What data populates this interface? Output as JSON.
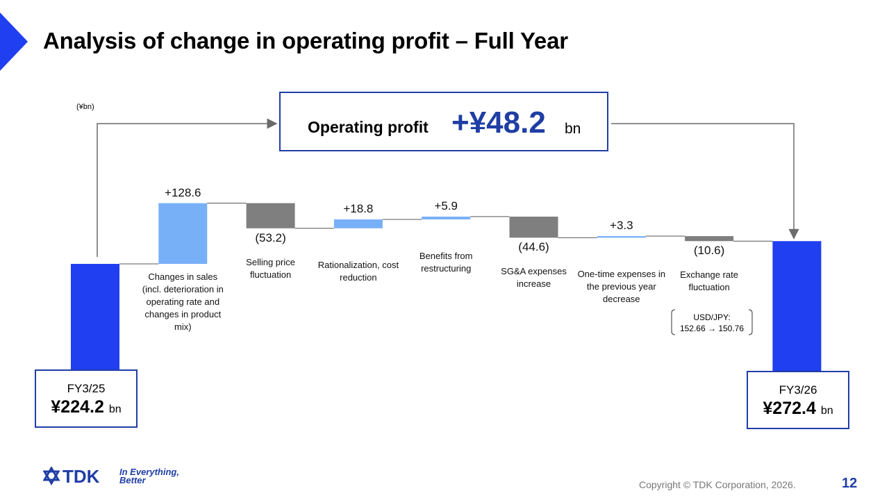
{
  "title": "Analysis of change in operating profit – Full Year",
  "unit_note": "(¥bn)",
  "summary": {
    "label": "Operating profit",
    "value": "+¥48.2",
    "unit": "bn"
  },
  "chart_data": {
    "type": "bar",
    "subtype": "waterfall",
    "start": {
      "label": "FY3/25",
      "value": 224.2,
      "value_text": "¥224.2",
      "unit": "bn"
    },
    "end": {
      "label": "FY3/26",
      "value": 272.4,
      "value_text": "¥272.4",
      "unit": "bn"
    },
    "steps": [
      {
        "category": "Changes in sales (incl. deterioration in operating rate and changes in product mix)",
        "value": 128.6,
        "label": "+128.6"
      },
      {
        "category": "Selling price fluctuation",
        "value": -53.2,
        "label": "(53.2)"
      },
      {
        "category": "Rationalization, cost reduction",
        "value": 18.8,
        "label": "+18.8"
      },
      {
        "category": "Benefits from restructuring",
        "value": 5.9,
        "label": "+5.9"
      },
      {
        "category": "SG&A expenses increase",
        "value": -44.6,
        "label": "(44.6)"
      },
      {
        "category": "One-time expenses in the previous year decrease",
        "value": 3.3,
        "label": "+3.3"
      },
      {
        "category": "Exchange rate fluctuation",
        "value": -10.6,
        "label": "(10.6)"
      }
    ],
    "exchange_note": [
      "USD/JPY:",
      "152.66 → 150.76"
    ],
    "colors": {
      "total": "#1f3ff0",
      "increase": "#78b0f8",
      "decrease": "#7f7f7f",
      "accent": "#1f3ea5"
    }
  },
  "footer": {
    "logo": "TDK",
    "tagline": [
      "In Everything,",
      "Better"
    ],
    "copyright": "Copyright  © TDK Corporation, 2026.",
    "page": "12"
  }
}
